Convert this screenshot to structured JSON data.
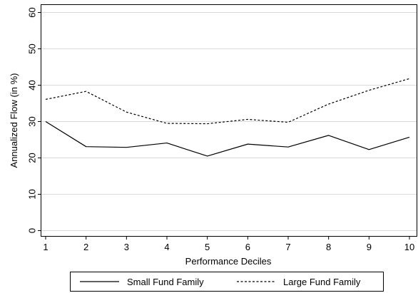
{
  "chart_data": {
    "type": "line",
    "title": "",
    "xlabel": "Performance Deciles",
    "ylabel": "Annualized Flow (in %)",
    "x": [
      1,
      2,
      3,
      4,
      5,
      6,
      7,
      8,
      9,
      10
    ],
    "xticks": [
      "1",
      "2",
      "3",
      "4",
      "5",
      "6",
      "7",
      "8",
      "9",
      "10"
    ],
    "xlim": [
      1,
      10
    ],
    "yticks": [
      "0",
      "10",
      "20",
      "30",
      "40",
      "50",
      "60"
    ],
    "ylim": [
      0,
      62
    ],
    "grid": true,
    "legend_position": "bottom",
    "series": [
      {
        "name": "Small Fund Family",
        "style": "solid",
        "color": "#000000",
        "values": [
          30.0,
          23.1,
          22.9,
          24.1,
          20.5,
          23.8,
          23.0,
          26.2,
          22.3,
          25.7
        ]
      },
      {
        "name": "Large Fund Family",
        "style": "dashed",
        "color": "#000000",
        "values": [
          36.1,
          38.3,
          32.6,
          29.5,
          29.4,
          30.6,
          29.8,
          34.8,
          38.6,
          41.8
        ]
      }
    ]
  }
}
